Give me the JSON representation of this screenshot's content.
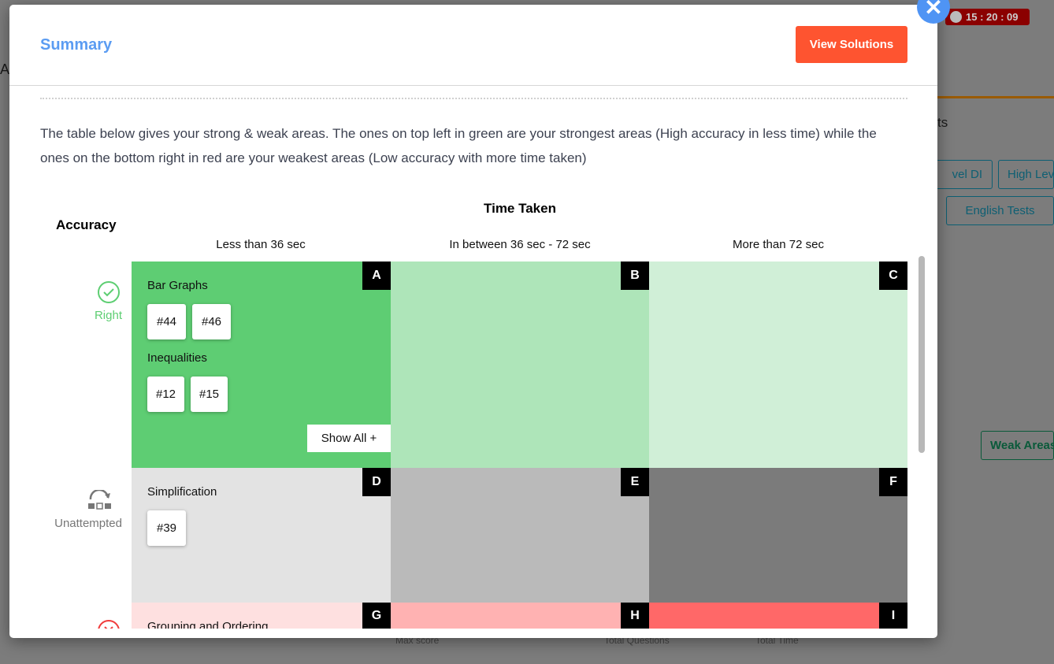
{
  "background": {
    "timer": "15 : 20 : 09",
    "heading_fragment": "AA",
    "section_fragment": "ts",
    "filter_buttons": [
      "vel DI",
      "High Lev",
      "English Tests"
    ],
    "weak_areas_button": "Weak Areas",
    "stats": [
      "Max score",
      "Total Questions",
      "Total Time"
    ]
  },
  "modal": {
    "title": "Summary",
    "view_solutions": "View Solutions",
    "close_icon": "close-icon",
    "description": "The table below gives your strong & weak areas. The ones on top left in green are your strongest areas (High accuracy in less time) while the ones on the bottom right in red are your weakest areas (Low accuracy with more time taken)",
    "accuracy_label": "Accuracy",
    "time_taken_label": "Time Taken",
    "columns": [
      "Less than 36 sec",
      "In between 36 sec - 72 sec",
      "More than 72 sec"
    ],
    "rows": [
      {
        "label": "Right",
        "icon": "check-circle-icon",
        "color": "#5dce72"
      },
      {
        "label": "Unattempted",
        "icon": "skip-icon",
        "color": "#777777"
      },
      {
        "label": "",
        "icon": "cross-circle-icon",
        "color": "#f03c3c"
      }
    ],
    "cells": {
      "A": {
        "letter": "A",
        "color": "#5ecd73",
        "topics": [
          {
            "name": "Bar Graphs",
            "questions": [
              "#44",
              "#46"
            ]
          },
          {
            "name": "Inequalities",
            "questions": [
              "#12",
              "#15"
            ]
          }
        ],
        "show_all": "Show All +"
      },
      "B": {
        "letter": "B",
        "color": "#aee5b9"
      },
      "C": {
        "letter": "C",
        "color": "#d0efd7"
      },
      "D": {
        "letter": "D",
        "color": "#e3e3e3",
        "topics": [
          {
            "name": "Simplification",
            "questions": [
              "#39"
            ]
          }
        ]
      },
      "E": {
        "letter": "E",
        "color": "#bababa"
      },
      "F": {
        "letter": "F",
        "color": "#7b7b7b"
      },
      "G": {
        "letter": "G",
        "color": "#fee0e0",
        "topics": [
          {
            "name": "Grouping and Ordering"
          }
        ]
      },
      "H": {
        "letter": "H",
        "color": "#ffb2b2"
      },
      "I": {
        "letter": "I",
        "color": "#ff6868"
      }
    }
  }
}
